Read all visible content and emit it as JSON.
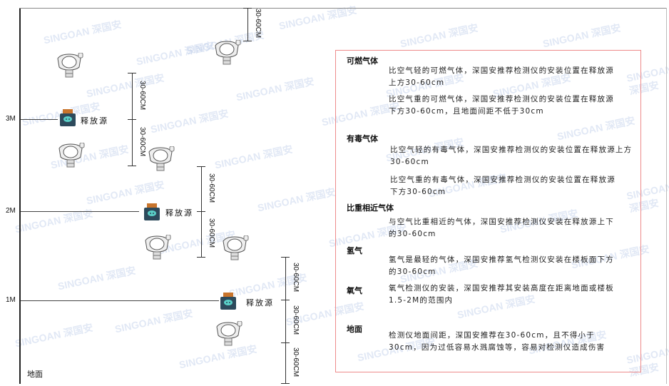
{
  "watermark": "SINGOAN 深国安",
  "levels": {
    "l3": "3M",
    "l2": "2M",
    "l1": "1M",
    "ground": "地面"
  },
  "source_label": "释放源",
  "dim_label": "30-60CM",
  "colors": {
    "box_border": "#ee8a8a",
    "source_top": "#c8742c",
    "source_body": "#2d4a5c",
    "source_face": "#5ad0c8"
  },
  "panel": {
    "combustible": {
      "title": "可燃气体",
      "light": "比空气轻的可燃气体，深国安推荐检测仪的安装位置在释放源上方30-60cm",
      "heavy": "比空气重的可燃气体，深国安推荐检测仪的安装位置在释放源下方30-60cm，且地面间距不低于30cm"
    },
    "toxic": {
      "title": "有毒气体",
      "light": "比空气轻的有毒气体，深国安推荐检测仪的安装位置在释放源上方30-60cm",
      "heavy": "比空气重的有毒气体，深国安推荐检测仪的安装位置在释放源下方30-60cm"
    },
    "similar": {
      "title": "比重相近气体",
      "text": "与空气比重相近的气体，深国安推荐检测仪安装在释放源上下的30-60cm"
    },
    "hydrogen": {
      "title": "氢气",
      "text": "氢气是最轻的气体，深国安推荐氢气检测仪安装在楼板面下方的30-60cm"
    },
    "oxygen": {
      "title": "氧气",
      "text": "氧气检测仪的安装，深国安推荐其安装高度在距离地面或楼板1.5-2M的范围内"
    },
    "ground": {
      "title": "地面",
      "text": "检测仪地面间距，深国安推荐在30-60cm，且不得小于30cm，因为过低容易水溅腐蚀等，容易对检测仪造成伤害"
    }
  }
}
